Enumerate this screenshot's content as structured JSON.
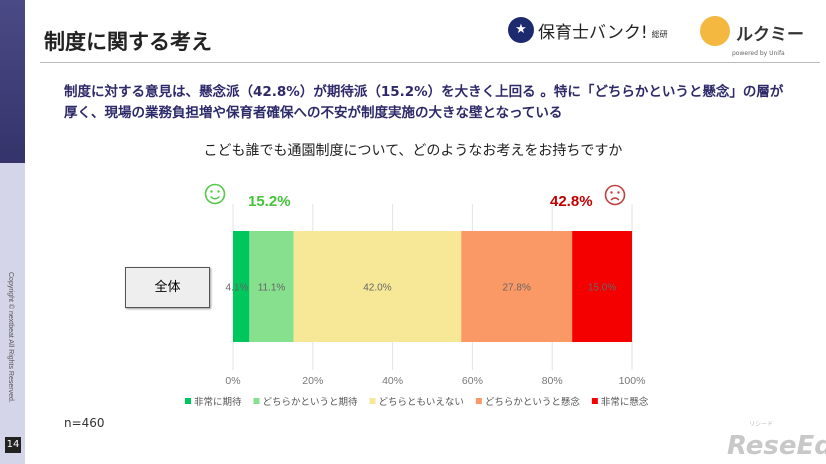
{
  "header": {
    "title": "制度に関する考え",
    "logo1_text": "保育士バンク!",
    "logo1_suffix": "総研",
    "logo2_text": "ルクミー",
    "logo2_sub": "powered by Unifa"
  },
  "summary": "制度に対する意見は、懸念派（42.8%）が期待派（15.2%）を大きく上回る 。特に「どちらかというと懸念」の層が厚く、現場の業務負担増や保育者確保への不安が制度実施の大きな壁となっている",
  "sidebar": {
    "copyright": "Copyright © nextbeat All Rights Reserved.",
    "page": "14"
  },
  "footer": {
    "n": "n=460",
    "watermark": "ReseEd",
    "watermark_kana": "リシード"
  },
  "chart_data": {
    "type": "bar",
    "orientation": "horizontal",
    "stacked": true,
    "title": "こども誰でも通園制度について、どのようなお考えをお持ちですか",
    "categories": [
      "全体"
    ],
    "series": [
      {
        "name": "非常に期待",
        "values": [
          4.1
        ],
        "color": "#00c65e"
      },
      {
        "name": "どちらかというと期待",
        "values": [
          11.1
        ],
        "color": "#86e08e"
      },
      {
        "name": "どちらともいえない",
        "values": [
          42.0
        ],
        "color": "#f7e897"
      },
      {
        "name": "どちらかというと懸念",
        "values": [
          27.8
        ],
        "color": "#fb9966"
      },
      {
        "name": "非常に懸念",
        "values": [
          15.0
        ],
        "color": "#f50000"
      }
    ],
    "xlim": [
      0,
      100
    ],
    "xticks": [
      "0%",
      "20%",
      "40%",
      "60%",
      "80%",
      "100%"
    ],
    "grid": true,
    "legend": "bottom",
    "annotations": [
      {
        "text": "15.2%",
        "color": "#44c23a",
        "icon": "smiley-face-icon"
      },
      {
        "text": "42.8%",
        "color": "#c00000",
        "icon": "sad-face-icon"
      }
    ]
  }
}
